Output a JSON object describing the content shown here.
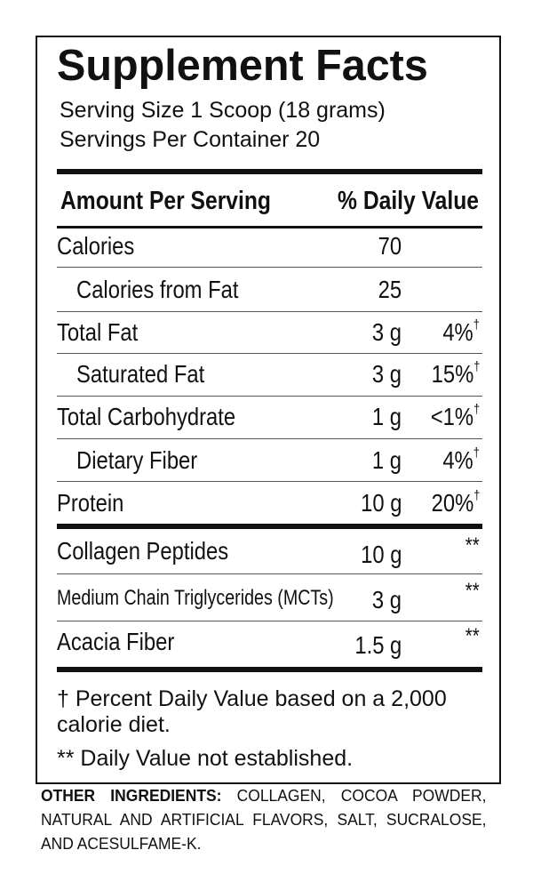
{
  "title": "Supplement Facts",
  "serving_size": "Serving Size 1 Scoop (18 grams)",
  "servings_per_container": "Servings Per Container 20",
  "header": {
    "amount": "Amount Per Serving",
    "daily_value": "% Daily Value"
  },
  "rows": [
    {
      "label": "Calories",
      "amount": "70"
    },
    {
      "label": "Calories from Fat",
      "amount": "25"
    },
    {
      "label": "Total Fat",
      "amount": "3 g",
      "dv": "4%",
      "dv_mark": "†"
    },
    {
      "label": "Saturated Fat",
      "amount": "3 g",
      "dv": "15%",
      "dv_mark": "†"
    },
    {
      "label": "Total Carbohydrate",
      "amount": "1 g",
      "dv": "<1%",
      "dv_mark": "†"
    },
    {
      "label": "Dietary Fiber",
      "amount": "1 g",
      "dv": "4%",
      "dv_mark": "†"
    },
    {
      "label": "Protein",
      "amount": "10 g",
      "dv": "20%",
      "dv_mark": "†"
    },
    {
      "label": "Collagen Peptides",
      "amount": "10 g",
      "dv": "**"
    },
    {
      "label": "Medium Chain Triglycerides (MCTs)",
      "amount": "3 g",
      "dv": "**"
    },
    {
      "label": "Acacia Fiber",
      "amount": "1.5 g",
      "dv": "**"
    }
  ],
  "footnotes": [
    "† Percent Daily Value based on a 2,000 calorie diet.",
    "** Daily Value not established."
  ],
  "other_ingredients": {
    "label": "OTHER INGREDIENTS:",
    "text": "COLLAGEN, COCOA POWDER, NATURAL AND ARTIFICIAL FLAVORS, SALT, SUCRALOSE, AND ACESULFAME-K."
  }
}
